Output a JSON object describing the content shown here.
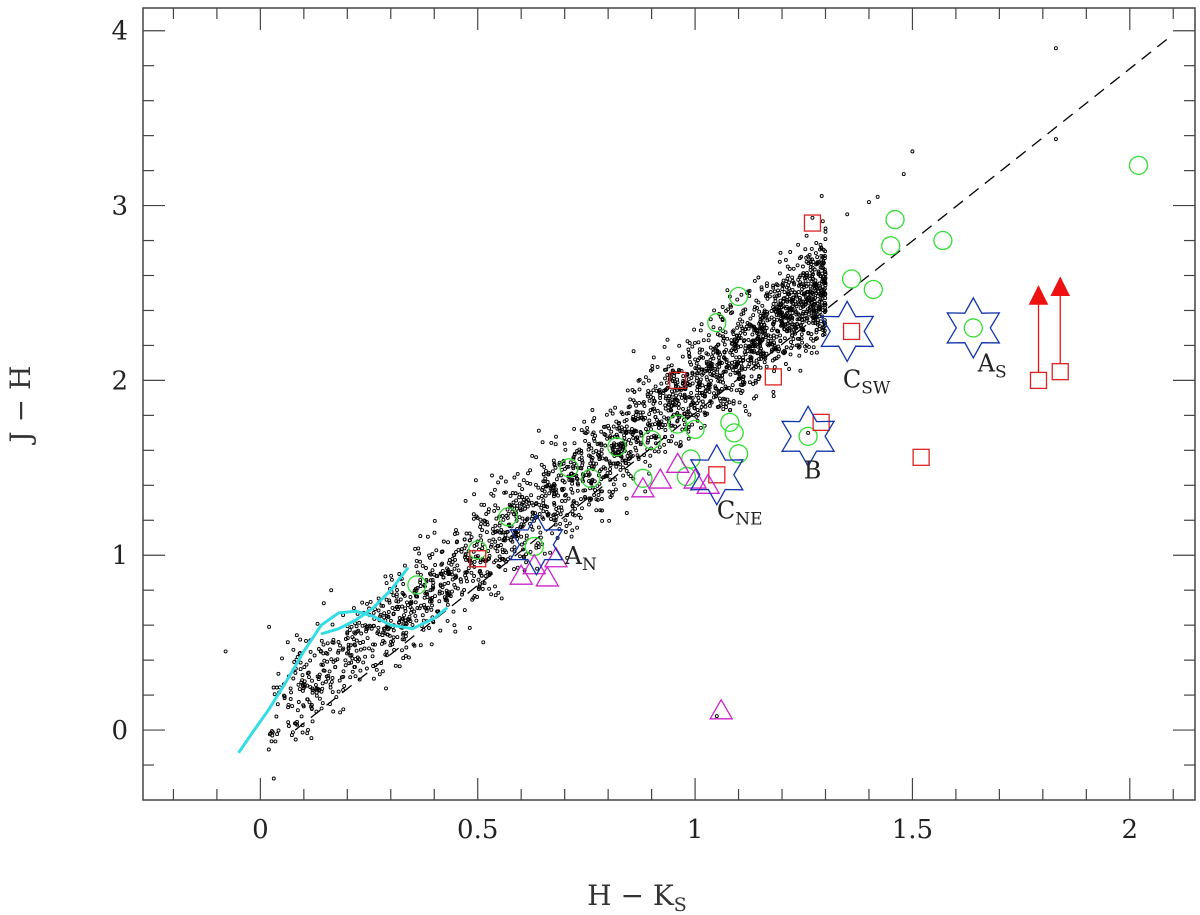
{
  "chart_data": {
    "type": "scatter",
    "xlabel_main": "H − K",
    "xlabel_sub": "S",
    "ylabel": "J − H",
    "xlim": [
      -0.27,
      2.15
    ],
    "ylim": [
      -0.4,
      4.13
    ],
    "x_ticks_major": [
      0,
      0.5,
      1,
      1.5,
      2
    ],
    "x_tick_labels": [
      "0",
      "0.5",
      "1",
      "1.5",
      "2"
    ],
    "y_ticks_major": [
      0,
      1,
      2,
      3,
      4
    ],
    "y_tick_labels": [
      "0",
      "1",
      "2",
      "3",
      "4"
    ],
    "grid": false,
    "colors": {
      "field_stars": "#000000",
      "main_sequence": "#33dde6",
      "reddening_line": "#000000",
      "circles": "#33dd33",
      "squares": "#dd2222",
      "triangles": "#cc22cc",
      "stars": "#1133aa",
      "arrows": "#ee1111"
    },
    "reddening_line": {
      "x": [
        0.08,
        2.09
      ],
      "y": [
        0.0,
        3.96
      ]
    },
    "main_sequence": {
      "x": [
        -0.05,
        -0.02,
        0.02,
        0.06,
        0.1,
        0.14,
        0.18,
        0.22,
        0.26,
        0.3,
        0.35,
        0.4,
        0.43
      ],
      "y": [
        -0.13,
        -0.02,
        0.12,
        0.28,
        0.45,
        0.6,
        0.67,
        0.68,
        0.65,
        0.6,
        0.58,
        0.64,
        0.7
      ]
    },
    "main_sequence_branch": {
      "x": [
        0.14,
        0.18,
        0.22,
        0.26,
        0.3,
        0.34
      ],
      "y": [
        0.55,
        0.58,
        0.63,
        0.7,
        0.8,
        0.93
      ]
    },
    "field_band": {
      "x_range": [
        -0.05,
        1.3
      ],
      "relation": {
        "intercept": 0.05,
        "slope": 1.92
      },
      "scatter": 0.14,
      "count": 2600,
      "seed": 7
    },
    "field_outliers": [
      {
        "x": -0.08,
        "y": 0.45
      },
      {
        "x": 0.02,
        "y": 0.59
      },
      {
        "x": 1.83,
        "y": 3.9
      },
      {
        "x": 1.83,
        "y": 3.38
      },
      {
        "x": 1.5,
        "y": 3.31
      },
      {
        "x": 1.48,
        "y": 3.18
      },
      {
        "x": 1.42,
        "y": 3.05
      },
      {
        "x": 1.4,
        "y": 3.02
      },
      {
        "x": 1.35,
        "y": 2.95
      },
      {
        "x": 1.3,
        "y": 2.85
      },
      {
        "x": 1.12,
        "y": 2.5
      },
      {
        "x": 1.08,
        "y": 2.48
      },
      {
        "x": 0.12,
        "y": 0.05
      },
      {
        "x": 0.18,
        "y": 0.22
      },
      {
        "x": 1.27,
        "y": 2.93
      },
      {
        "x": 1.05,
        "y": 0.08
      },
      {
        "x": 1.26,
        "y": 1.7
      },
      {
        "x": 1.16,
        "y": 2.4
      }
    ],
    "circles": [
      {
        "x": 0.5,
        "y": 1.03
      },
      {
        "x": 0.36,
        "y": 0.83
      },
      {
        "x": 0.63,
        "y": 1.05
      },
      {
        "x": 0.57,
        "y": 1.22
      },
      {
        "x": 0.71,
        "y": 1.5
      },
      {
        "x": 0.76,
        "y": 1.44
      },
      {
        "x": 0.82,
        "y": 1.62
      },
      {
        "x": 0.88,
        "y": 1.44
      },
      {
        "x": 0.9,
        "y": 1.66
      },
      {
        "x": 0.96,
        "y": 1.75
      },
      {
        "x": 0.99,
        "y": 1.55
      },
      {
        "x": 1.0,
        "y": 1.72
      },
      {
        "x": 1.08,
        "y": 1.76
      },
      {
        "x": 1.09,
        "y": 1.7
      },
      {
        "x": 1.1,
        "y": 1.58
      },
      {
        "x": 1.05,
        "y": 2.33
      },
      {
        "x": 1.1,
        "y": 2.48
      },
      {
        "x": 1.36,
        "y": 2.58
      },
      {
        "x": 1.41,
        "y": 2.52
      },
      {
        "x": 1.45,
        "y": 2.77
      },
      {
        "x": 1.46,
        "y": 2.92
      },
      {
        "x": 1.57,
        "y": 2.8
      },
      {
        "x": 1.64,
        "y": 2.3
      },
      {
        "x": 1.26,
        "y": 1.68
      },
      {
        "x": 2.02,
        "y": 3.23
      },
      {
        "x": 0.98,
        "y": 1.45
      }
    ],
    "squares": [
      {
        "x": 0.5,
        "y": 0.98
      },
      {
        "x": 1.27,
        "y": 2.9
      },
      {
        "x": 0.96,
        "y": 2.0
      },
      {
        "x": 1.18,
        "y": 2.02
      },
      {
        "x": 1.36,
        "y": 2.28
      },
      {
        "x": 1.29,
        "y": 1.76
      },
      {
        "x": 1.05,
        "y": 1.46
      },
      {
        "x": 1.52,
        "y": 1.56
      },
      {
        "x": 1.79,
        "y": 2.0
      },
      {
        "x": 1.84,
        "y": 2.05
      }
    ],
    "triangles": [
      {
        "x": 0.6,
        "y": 0.88
      },
      {
        "x": 0.63,
        "y": 0.94
      },
      {
        "x": 0.66,
        "y": 0.87
      },
      {
        "x": 0.68,
        "y": 0.98
      },
      {
        "x": 0.88,
        "y": 1.38
      },
      {
        "x": 0.92,
        "y": 1.43
      },
      {
        "x": 0.96,
        "y": 1.52
      },
      {
        "x": 1.0,
        "y": 1.43
      },
      {
        "x": 1.03,
        "y": 1.4
      },
      {
        "x": 1.06,
        "y": 0.11
      }
    ],
    "stars": [
      {
        "x": 0.635,
        "y": 1.06
      },
      {
        "x": 1.35,
        "y": 2.28
      },
      {
        "x": 1.64,
        "y": 2.3
      },
      {
        "x": 1.26,
        "y": 1.68
      },
      {
        "x": 1.05,
        "y": 1.46
      }
    ],
    "arrows": [
      {
        "x": 1.79,
        "y_from": 2.0,
        "y_to": 2.47
      },
      {
        "x": 1.84,
        "y_from": 2.05,
        "y_to": 2.52
      }
    ],
    "annotations": [
      {
        "main": "A",
        "sub": "N",
        "x": 0.7,
        "y": 0.95
      },
      {
        "main": "A",
        "sub": "S",
        "x": 1.65,
        "y": 2.05
      },
      {
        "main": "B",
        "x": 1.25,
        "y": 1.44
      },
      {
        "main": "C",
        "sub": "NE",
        "x": 1.05,
        "y": 1.21
      },
      {
        "main": "C",
        "sub": "SW",
        "x": 1.34,
        "y": 1.96
      }
    ]
  }
}
